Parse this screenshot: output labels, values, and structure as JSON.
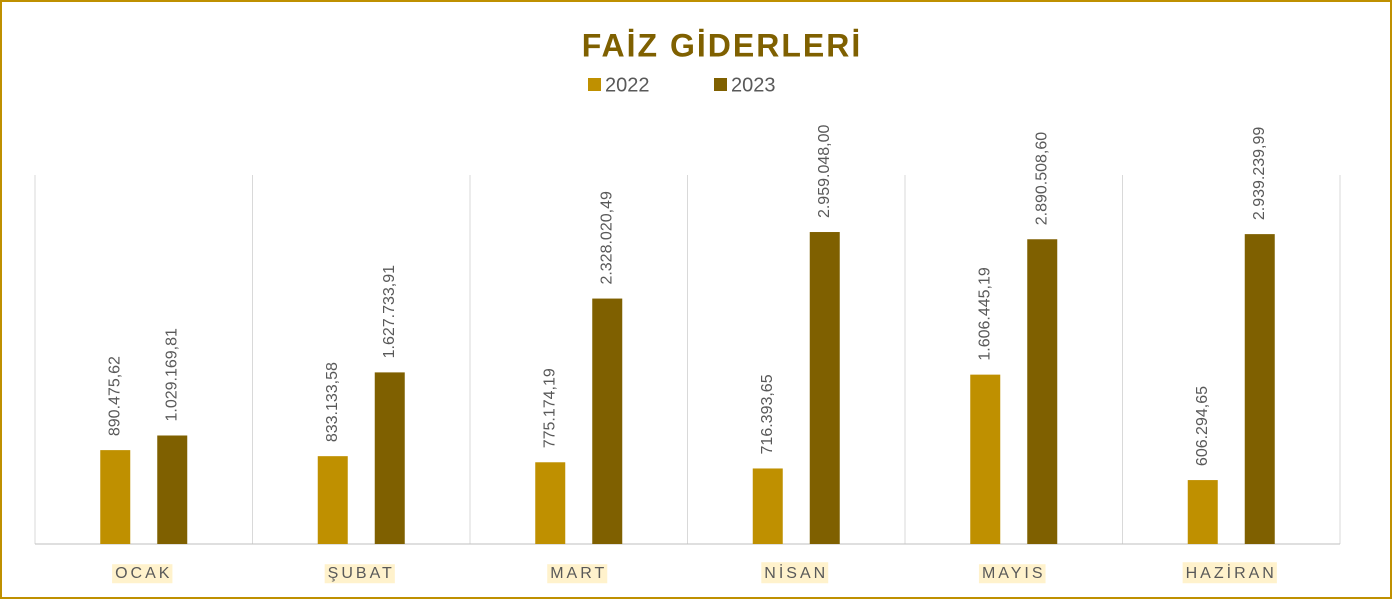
{
  "chart_data": {
    "type": "bar",
    "title": "FAİZ GİDERLERİ",
    "categories": [
      "OCAK",
      "ŞUBAT",
      "MART",
      "NİSAN",
      "MAYIS",
      "HAZİRAN"
    ],
    "series": [
      {
        "name": "2022",
        "color": "#bf9000",
        "values": [
          890475.62,
          833133.58,
          775174.19,
          716393.65,
          1606445.19,
          606294.65
        ],
        "value_labels": [
          "890.475,62",
          "833.133,58",
          "775.174,19",
          "716.393,65",
          "1.606.445,19",
          "606.294,65"
        ]
      },
      {
        "name": "2023",
        "color": "#7f6000",
        "values": [
          1029169.81,
          1627733.91,
          2328020.49,
          2959048.0,
          2890508.6,
          2939239.99
        ],
        "value_labels": [
          "1.029.169,81",
          "1.627.733,91",
          "2.328.020,49",
          "2.959.048,00",
          "2.890.508,60",
          "2.939.239,99"
        ]
      }
    ],
    "ylim": [
      0,
      3500000
    ],
    "legend": "top"
  }
}
